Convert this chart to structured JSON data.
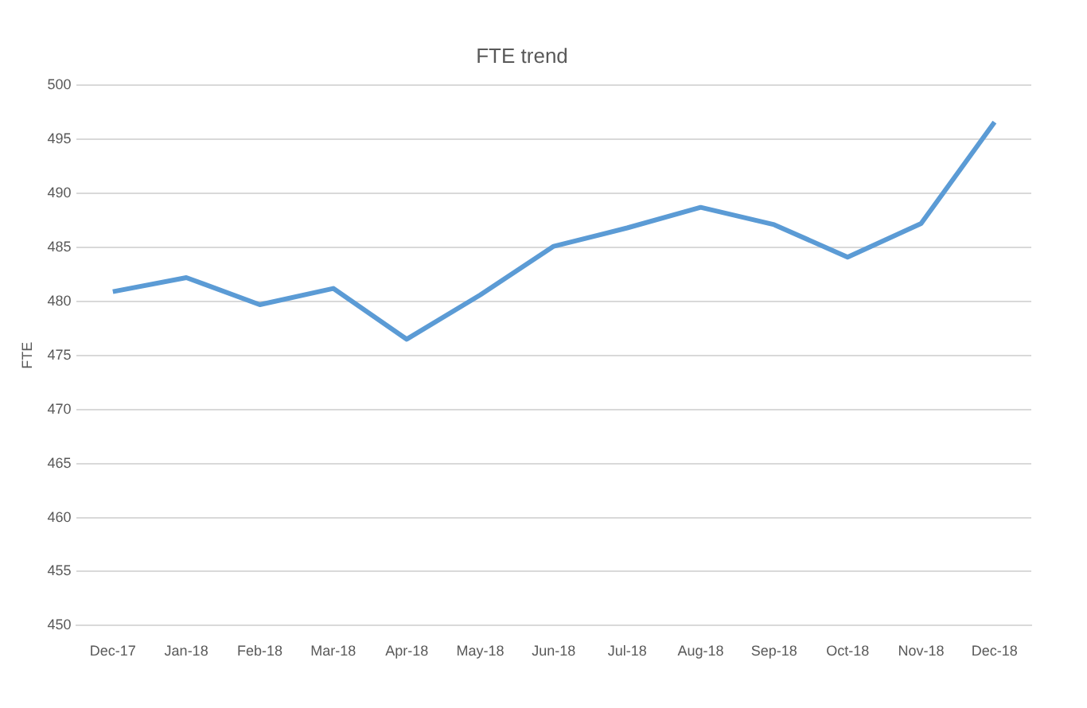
{
  "chart_data": {
    "type": "line",
    "title": "FTE trend",
    "ylabel": "FTE",
    "categories": [
      "Dec-17",
      "Jan-18",
      "Feb-18",
      "Mar-18",
      "Apr-18",
      "May-18",
      "Jun-18",
      "Jul-18",
      "Aug-18",
      "Sep-18",
      "Oct-18",
      "Nov-18",
      "Dec-18"
    ],
    "series": [
      {
        "color": "#5b9bd5",
        "values": [
          480.9,
          482.2,
          479.7,
          481.2,
          476.5,
          480.6,
          485.1,
          486.8,
          488.7,
          487.1,
          484.1,
          487.2,
          496.6
        ]
      }
    ],
    "ylim": [
      450,
      500
    ],
    "yticks": [
      450,
      455,
      460,
      465,
      470,
      475,
      480,
      485,
      490,
      495,
      500
    ],
    "grid": "y",
    "legend": false,
    "marker": "none",
    "line_style": "solid"
  }
}
